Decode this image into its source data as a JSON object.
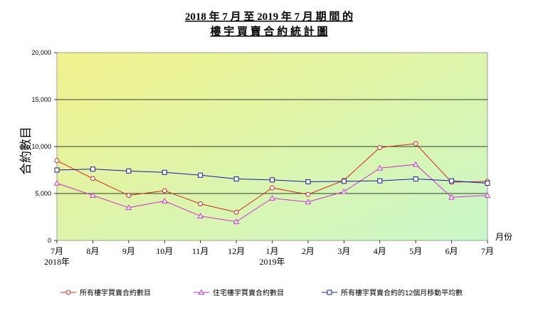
{
  "chart_data": {
    "type": "line",
    "title_lines": [
      "2018 年 7 月 至 2019 年 7 月 期 間 的",
      "樓 宇 買 賣 合 約 統 計 圖"
    ],
    "ylabel": "合約數目",
    "xlabel": "月份",
    "ylim": [
      0,
      20000
    ],
    "yticks": [
      "0",
      "5,000",
      "10,000",
      "15,000",
      "20,000"
    ],
    "ytick_values": [
      0,
      5000,
      10000,
      15000,
      20000
    ],
    "categories": [
      "7月",
      "8月",
      "9月",
      "10月",
      "11月",
      "12月",
      "1月",
      "2月",
      "3月",
      "4月",
      "5月",
      "6月",
      "7月"
    ],
    "year_labels": [
      {
        "index": 0,
        "label": "2018年"
      },
      {
        "index": 6,
        "label": "2019年"
      }
    ],
    "series": [
      {
        "name": "所有樓宇買賣合約數目",
        "color": "#cc2a1f",
        "marker": "circle",
        "values": [
          8500,
          6600,
          4800,
          5300,
          3900,
          3000,
          5600,
          4900,
          6400,
          9900,
          10300,
          6200,
          6300
        ]
      },
      {
        "name": "住宅樓宇買賣合約數目",
        "color": "#cc33cc",
        "marker": "triangle",
        "values": [
          6100,
          4800,
          3500,
          4200,
          2600,
          2000,
          4500,
          4100,
          5200,
          7700,
          8100,
          4600,
          4800
        ]
      },
      {
        "name": "所有樓宇買賣合約的12個月移動平均數",
        "color": "#1a1aa6",
        "marker": "square",
        "values": [
          7500,
          7600,
          7400,
          7250,
          6950,
          6550,
          6450,
          6250,
          6300,
          6350,
          6550,
          6350,
          6100
        ]
      }
    ],
    "grid": true,
    "legend_position": "bottom",
    "background": {
      "top": "#f2f28c",
      "bottom": "#c9f7c9"
    }
  }
}
